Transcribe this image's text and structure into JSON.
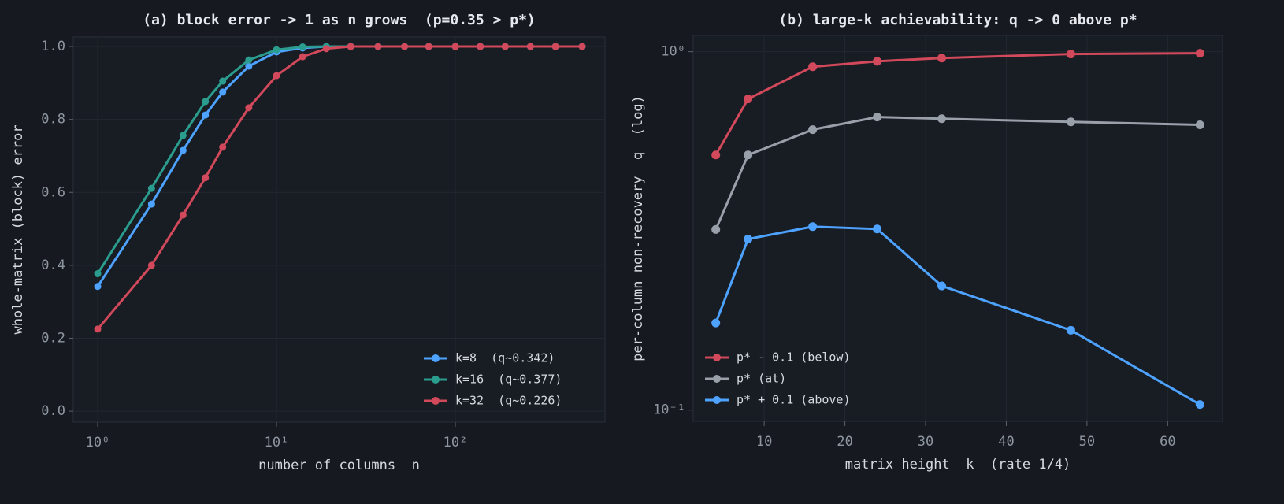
{
  "chart_data": [
    {
      "type": "line",
      "title": "(a) block error -> 1 as n grows  (p=0.35 > p*)",
      "xlabel": "number of columns  n",
      "ylabel": "whole-matrix (block) error",
      "xscale": "log",
      "grid": true,
      "legend": "lower right",
      "x": [
        1,
        2,
        3,
        4,
        5,
        7,
        10,
        14,
        19,
        26,
        37,
        52,
        71,
        100,
        138,
        190,
        263,
        363,
        512
      ],
      "series": [
        {
          "name": "k=8  (q~0.342)",
          "color": "#4da3ff",
          "values": [
            0.342,
            0.568,
            0.715,
            0.812,
            0.875,
            0.946,
            0.985,
            0.996,
            1.0,
            1.0,
            1.0,
            1.0,
            1.0,
            1.0,
            1.0,
            1.0,
            1.0,
            1.0,
            1.0
          ]
        },
        {
          "name": "k=16  (q~0.377)",
          "color": "#2a9d8f",
          "values": [
            0.377,
            0.611,
            0.756,
            0.849,
            0.905,
            0.963,
            0.991,
            0.999,
            1.0,
            1.0,
            1.0,
            1.0,
            1.0,
            1.0,
            1.0,
            1.0,
            1.0,
            1.0,
            1.0
          ]
        },
        {
          "name": "k=32  (q~0.226)",
          "color": "#d1495b",
          "values": [
            0.225,
            0.4,
            0.538,
            0.64,
            0.724,
            0.832,
            0.92,
            0.972,
            0.994,
            1.0,
            1.0,
            1.0,
            1.0,
            1.0,
            1.0,
            1.0,
            1.0,
            1.0,
            1.0
          ]
        }
      ],
      "xlim": [
        0.73,
        687
      ],
      "xticks": [
        {
          "value": 1,
          "label": "10⁰"
        },
        {
          "value": 10,
          "label": "10¹"
        },
        {
          "value": 100,
          "label": "10²"
        }
      ],
      "ylim": [
        -0.03,
        1.026
      ],
      "yticks": [
        {
          "value": 0,
          "label": "0.0"
        },
        0.2,
        0.4,
        0.6,
        0.8,
        {
          "value": 1,
          "label": "1.0"
        }
      ]
    },
    {
      "type": "line",
      "title": "(b) large-k achievability: q -> 0 above p*",
      "xlabel": "matrix height  k  (rate 1/4)",
      "ylabel": "per-column non-recovery  q  (log)",
      "yscale": "log",
      "grid": true,
      "legend": "lower left",
      "x": [
        4,
        8,
        16,
        24,
        32,
        48,
        64
      ],
      "series": [
        {
          "name": "p* - 0.1 (below)",
          "color": "#d1495b",
          "values": [
            0.515,
            0.738,
            0.908,
            0.94,
            0.96,
            0.985,
            0.99
          ]
        },
        {
          "name": "p* (at)",
          "color": "#9aa0aa",
          "values": [
            0.319,
            0.515,
            0.606,
            0.657,
            0.65,
            0.637,
            0.625
          ]
        },
        {
          "name": "p* + 0.1 (above)",
          "color": "#4da3ff",
          "values": [
            0.175,
            0.3,
            0.325,
            0.32,
            0.222,
            0.167,
            0.1036
          ]
        }
      ],
      "xlim": [
        1.2,
        66.8
      ],
      "xticks": [
        10,
        20,
        30,
        40,
        50,
        60
      ],
      "ylim": [
        0.093,
        1.11
      ],
      "yticks": [
        {
          "value": 0.1,
          "label": "10⁻¹"
        },
        {
          "value": 1,
          "label": "10⁰"
        }
      ]
    }
  ]
}
